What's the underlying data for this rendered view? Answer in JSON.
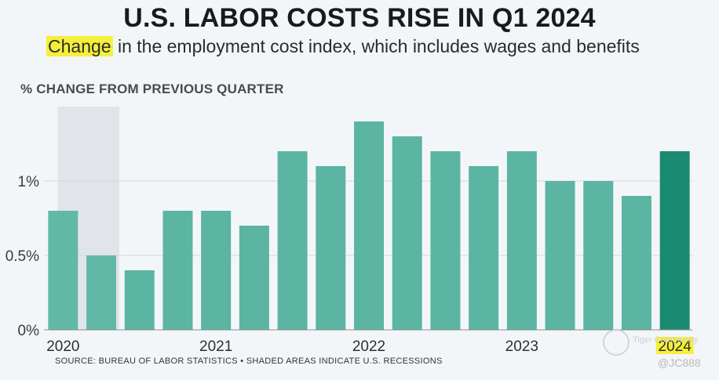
{
  "header": {
    "title": "U.S. LABOR COSTS RISE IN Q1 2024",
    "subtitle_highlight": "Change",
    "subtitle_rest": " in the employment cost index, which includes wages and benefits"
  },
  "colors": {
    "bar": "#5bb5a2",
    "bar_latest": "#1b8a72",
    "recession_shade": "#e1e5e9",
    "highlight": "#f5f03a"
  },
  "chart_data": {
    "type": "bar",
    "title": "U.S. LABOR COSTS RISE IN Q1 2024",
    "subtitle": "Change in the employment cost index, which includes wages and benefits",
    "ylabel": "% CHANGE FROM PREVIOUS QUARTER",
    "xlabel": "",
    "categories": [
      "2020 Q1",
      "2020 Q2",
      "2020 Q3",
      "2020 Q4",
      "2021 Q1",
      "2021 Q2",
      "2021 Q3",
      "2021 Q4",
      "2022 Q1",
      "2022 Q2",
      "2022 Q3",
      "2022 Q4",
      "2023 Q1",
      "2023 Q2",
      "2023 Q3",
      "2023 Q4",
      "2024 Q1"
    ],
    "values": [
      0.8,
      0.5,
      0.4,
      0.8,
      0.8,
      0.7,
      1.2,
      1.1,
      1.4,
      1.3,
      1.2,
      1.1,
      1.2,
      1.0,
      1.0,
      0.9,
      1.2
    ],
    "ylim": [
      0,
      1.5
    ],
    "yticks": [
      {
        "value": 0,
        "label": "0%"
      },
      {
        "value": 0.5,
        "label": "0.5%"
      },
      {
        "value": 1,
        "label": "1%"
      }
    ],
    "xticks": [
      {
        "index": 0,
        "label": "2020"
      },
      {
        "index": 4,
        "label": "2021"
      },
      {
        "index": 8,
        "label": "2022"
      },
      {
        "index": 12,
        "label": "2023"
      },
      {
        "index": 16,
        "label": "2024",
        "highlight": true
      }
    ],
    "recession": {
      "start_index": 0,
      "end_index": 1
    },
    "grid": true
  },
  "footer": {
    "source": "SOURCE: BUREAU OF LABOR STATISTICS • SHADED AREAS INDICATE U.S. RECESSIONS"
  },
  "watermark": {
    "brand": "Tiger Community",
    "user": "@JC888"
  }
}
